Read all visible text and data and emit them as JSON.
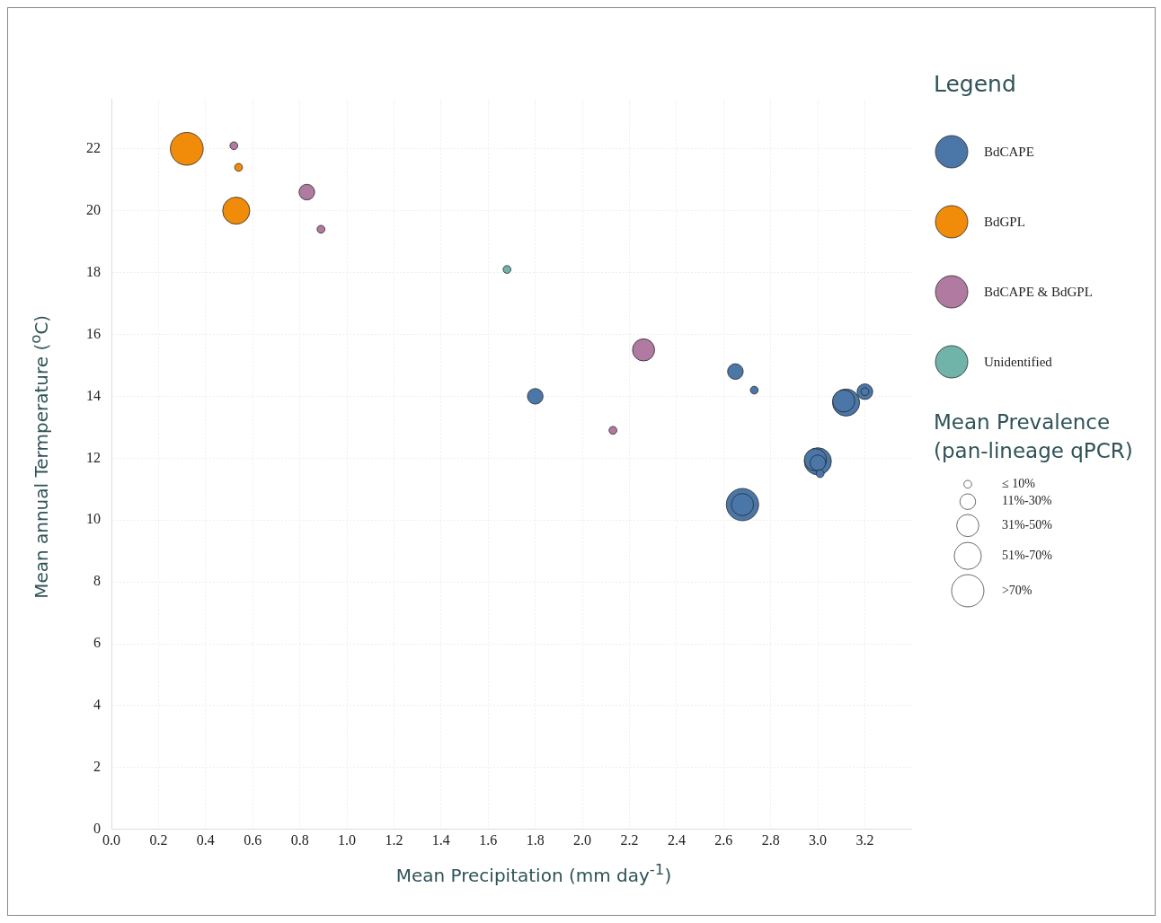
{
  "chart_data": {
    "type": "bubble",
    "xlabel": "Mean Precipitation (mm day$^{-1}$)",
    "ylabel": "Mean annual Termperature ($^{o}$C)",
    "legend_title": "Legend",
    "xlim": [
      0,
      3.4
    ],
    "xticks": [
      {
        "value": 0,
        "label": "0.0"
      },
      0.2,
      0.4,
      0.6,
      0.8,
      {
        "value": 1,
        "label": "1.0"
      },
      1.2,
      1.4,
      1.6,
      1.8,
      {
        "value": 2,
        "label": "2.0"
      },
      2.2,
      2.4,
      2.6,
      2.8,
      {
        "value": 3,
        "label": "3.0"
      },
      3.2
    ],
    "ylim": [
      0,
      23.6
    ],
    "yticks": [
      0,
      2,
      4,
      6,
      8,
      10,
      12,
      14,
      16,
      18,
      20,
      22
    ],
    "grid": true,
    "legend": "right",
    "size_legend": [
      {
        "value": 5,
        "label": "≤ 10%"
      },
      {
        "value": 20,
        "label": "11%-30%"
      },
      {
        "value": 40,
        "label": "31%-50%"
      },
      {
        "value": 60,
        "label": "51%-70%"
      },
      {
        "value": 85,
        "label": ">70%"
      }
    ],
    "annotations": [
      "Mean Prevalence (pan-lineage qPCR)"
    ],
    "series": [
      {
        "name": "BdCAPE",
        "color": "#4a76a8",
        "x": [
          1.8,
          2.65,
          2.73,
          3.12,
          3.11,
          3.2,
          3.2,
          3.0,
          2.99,
          3.0,
          3.01,
          2.68,
          2.68
        ],
        "values": [
          14.0,
          14.8,
          14.2,
          13.8,
          13.85,
          14.15,
          14.15,
          11.9,
          11.95,
          11.85,
          11.5,
          10.5,
          10.5
        ],
        "sizes": [
          20,
          20,
          5,
          60,
          40,
          20,
          5,
          60,
          40,
          20,
          5,
          85,
          40
        ]
      },
      {
        "name": "BdGPL",
        "color": "#f08c0a",
        "x": [
          0.32,
          0.54,
          0.53
        ],
        "values": [
          22.0,
          21.4,
          20.0
        ],
        "sizes": [
          88,
          5,
          60
        ]
      },
      {
        "name": "BdCAPE & BdGPL",
        "color": "#b07aa1",
        "x": [
          0.52,
          0.83,
          0.89,
          2.26,
          2.13
        ],
        "values": [
          22.1,
          20.6,
          19.4,
          15.5,
          12.9
        ],
        "sizes": [
          5,
          20,
          5,
          40,
          5
        ]
      },
      {
        "name": "Unidentified",
        "color": "#6fb3a9",
        "x": [
          1.68
        ],
        "values": [
          18.1
        ],
        "sizes": [
          5
        ]
      }
    ]
  }
}
